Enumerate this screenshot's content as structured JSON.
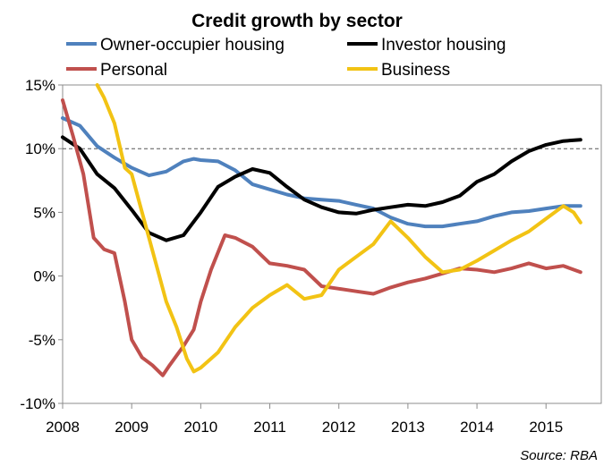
{
  "chart_data": {
    "type": "line",
    "title": "Credit growth by sector",
    "source": "Source: RBA",
    "xlim": [
      2008,
      2015.8
    ],
    "ylim": [
      -10,
      15
    ],
    "x_ticks": [
      2008,
      2009,
      2010,
      2011,
      2012,
      2013,
      2014,
      2015
    ],
    "x_tick_labels": [
      "2008",
      "2009",
      "2010",
      "2011",
      "2012",
      "2013",
      "2014",
      "2015"
    ],
    "y_ticks": [
      -10,
      -5,
      0,
      5,
      10,
      15
    ],
    "y_tick_labels": [
      "-10%",
      "-5%",
      "0%",
      "5%",
      "10%",
      "15%"
    ],
    "reference_line": 10,
    "grid": false,
    "legend_placement": "top",
    "series": [
      {
        "name": "Owner-occupier housing",
        "color": "#4f81bd",
        "x": [
          2008.0,
          2008.25,
          2008.5,
          2008.75,
          2009.0,
          2009.25,
          2009.5,
          2009.75,
          2009.9,
          2010.0,
          2010.25,
          2010.5,
          2010.75,
          2011.0,
          2011.25,
          2011.5,
          2011.75,
          2012.0,
          2012.25,
          2012.5,
          2012.75,
          2013.0,
          2013.25,
          2013.5,
          2013.75,
          2014.0,
          2014.25,
          2014.5,
          2014.75,
          2015.0,
          2015.25,
          2015.5
        ],
        "y": [
          12.4,
          11.8,
          10.2,
          9.3,
          8.5,
          7.9,
          8.2,
          9.0,
          9.2,
          9.1,
          9.0,
          8.3,
          7.2,
          6.8,
          6.4,
          6.1,
          6.0,
          5.9,
          5.6,
          5.3,
          4.6,
          4.1,
          3.9,
          3.9,
          4.1,
          4.3,
          4.7,
          5.0,
          5.1,
          5.3,
          5.5,
          5.5
        ]
      },
      {
        "name": "Investor housing",
        "color": "#000000",
        "x": [
          2008.0,
          2008.25,
          2008.5,
          2008.75,
          2009.0,
          2009.25,
          2009.5,
          2009.75,
          2010.0,
          2010.25,
          2010.5,
          2010.75,
          2011.0,
          2011.25,
          2011.5,
          2011.75,
          2012.0,
          2012.25,
          2012.5,
          2012.75,
          2013.0,
          2013.25,
          2013.5,
          2013.75,
          2014.0,
          2014.25,
          2014.5,
          2014.75,
          2015.0,
          2015.25,
          2015.5
        ],
        "y": [
          10.9,
          10.0,
          8.0,
          6.9,
          5.2,
          3.4,
          2.8,
          3.2,
          5.0,
          7.0,
          7.8,
          8.4,
          8.1,
          7.0,
          6.0,
          5.4,
          5.0,
          4.9,
          5.2,
          5.4,
          5.6,
          5.5,
          5.8,
          6.3,
          7.4,
          8.0,
          9.0,
          9.8,
          10.3,
          10.6,
          10.7
        ]
      },
      {
        "name": "Personal",
        "color": "#c0504d",
        "x": [
          2008.0,
          2008.15,
          2008.3,
          2008.45,
          2008.6,
          2008.75,
          2008.9,
          2009.0,
          2009.15,
          2009.3,
          2009.45,
          2009.55,
          2009.75,
          2009.9,
          2010.0,
          2010.15,
          2010.35,
          2010.5,
          2010.75,
          2011.0,
          2011.25,
          2011.5,
          2011.75,
          2012.0,
          2012.25,
          2012.5,
          2012.75,
          2013.0,
          2013.25,
          2013.5,
          2013.75,
          2014.0,
          2014.25,
          2014.5,
          2014.75,
          2015.0,
          2015.25,
          2015.5
        ],
        "y": [
          13.8,
          11.0,
          8.0,
          3.0,
          2.1,
          1.8,
          -2.0,
          -5.0,
          -6.4,
          -7.0,
          -7.8,
          -7.0,
          -5.5,
          -4.2,
          -2.0,
          0.5,
          3.2,
          3.0,
          2.3,
          1.0,
          0.8,
          0.5,
          -0.8,
          -1.0,
          -1.2,
          -1.4,
          -0.9,
          -0.5,
          -0.2,
          0.2,
          0.6,
          0.5,
          0.3,
          0.6,
          1.0,
          0.6,
          0.8,
          0.3
        ]
      },
      {
        "name": "Business",
        "color": "#f2c314",
        "x": [
          2008.5,
          2008.6,
          2008.75,
          2008.9,
          2009.0,
          2009.1,
          2009.25,
          2009.4,
          2009.5,
          2009.65,
          2009.8,
          2009.9,
          2010.0,
          2010.25,
          2010.5,
          2010.75,
          2011.0,
          2011.25,
          2011.5,
          2011.75,
          2012.0,
          2012.25,
          2012.5,
          2012.75,
          2013.0,
          2013.25,
          2013.5,
          2013.75,
          2014.0,
          2014.25,
          2014.5,
          2014.75,
          2015.0,
          2015.25,
          2015.4,
          2015.5
        ],
        "y": [
          15.0,
          14.0,
          12.0,
          8.5,
          8.0,
          6.0,
          3.0,
          0.0,
          -2.0,
          -4.0,
          -6.5,
          -7.5,
          -7.2,
          -6.0,
          -4.0,
          -2.5,
          -1.5,
          -0.7,
          -1.8,
          -1.5,
          0.5,
          1.5,
          2.5,
          4.3,
          3.0,
          1.5,
          0.3,
          0.5,
          1.2,
          2.0,
          2.8,
          3.5,
          4.5,
          5.5,
          5.0,
          4.2
        ]
      }
    ]
  }
}
